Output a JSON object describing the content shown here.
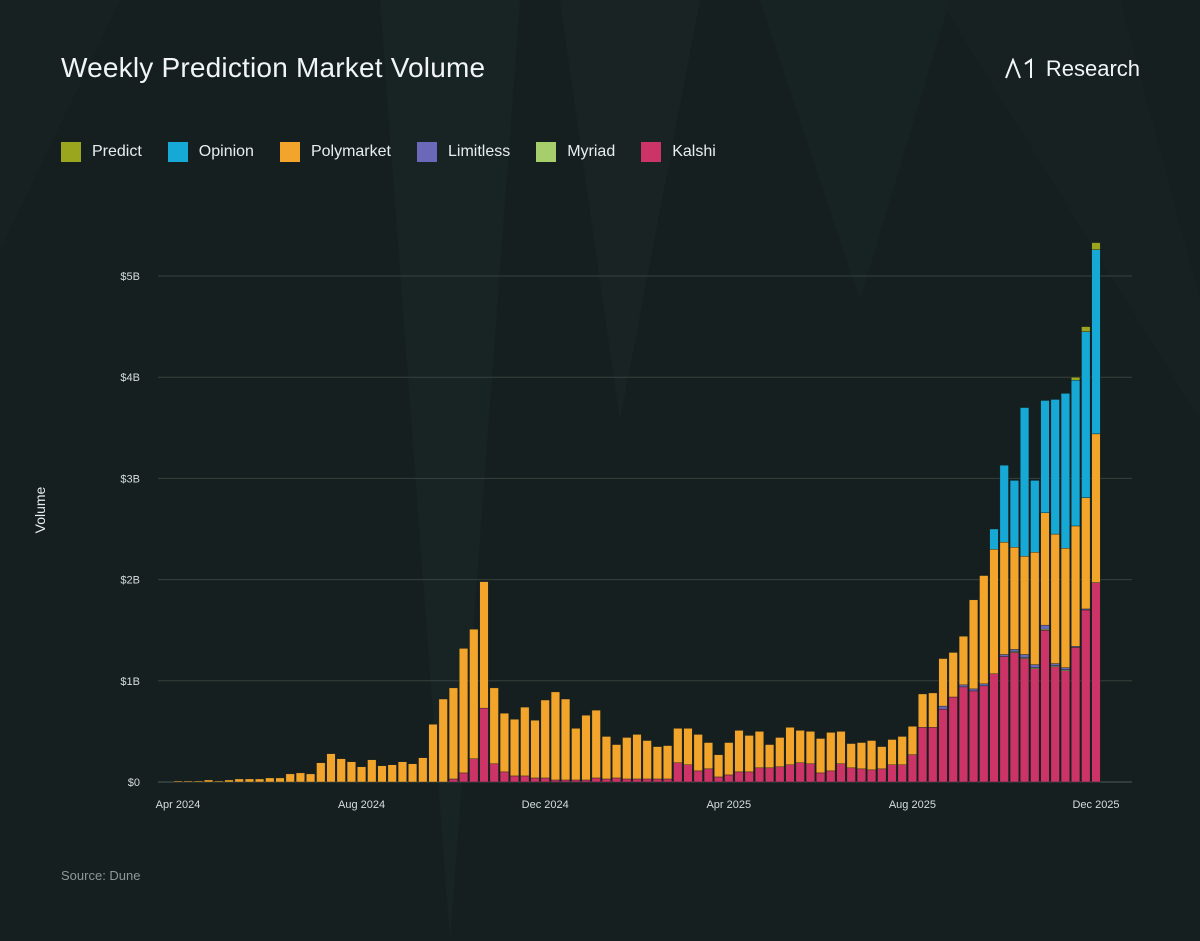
{
  "header": {
    "title": "Weekly Prediction Market Volume",
    "brand": "Research"
  },
  "legend": [
    {
      "label": "Predict",
      "color": "#9aa61e"
    },
    {
      "label": "Opinion",
      "color": "#17a9d6"
    },
    {
      "label": "Polymarket",
      "color": "#f3a52b"
    },
    {
      "label": "Limitless",
      "color": "#6b68b9"
    },
    {
      "label": "Myriad",
      "color": "#a6cf6b"
    },
    {
      "label": "Kalshi",
      "color": "#cc3366"
    }
  ],
  "footer": {
    "source": "Source: Dune"
  },
  "chart_data": {
    "type": "bar",
    "stacked": true,
    "title": "Weekly Prediction Market Volume",
    "xlabel": "",
    "ylabel": "Volume",
    "ylim": [
      0,
      5.4
    ],
    "y_ticks": [
      {
        "value": 0,
        "label": "$0"
      },
      {
        "value": 1,
        "label": "$1B"
      },
      {
        "value": 2,
        "label": "$2B"
      },
      {
        "value": 3,
        "label": "$3B"
      },
      {
        "value": 4,
        "label": "$4B"
      },
      {
        "value": 5,
        "label": "$5B"
      }
    ],
    "x_ticks": [
      {
        "week": 0,
        "label": "Apr 2024"
      },
      {
        "week": 18,
        "label": "Aug 2024"
      },
      {
        "week": 36,
        "label": "Dec 2024"
      },
      {
        "week": 54,
        "label": "Apr 2025"
      },
      {
        "week": 72,
        "label": "Aug 2025"
      },
      {
        "week": 90,
        "label": "Dec 2025"
      }
    ],
    "units": "billions USD",
    "weeks": 91,
    "series": [
      {
        "name": "Kalshi",
        "color": "#cc3366",
        "values": [
          0.0,
          0.0,
          0.0,
          0.0,
          0.0,
          0.0,
          0.0,
          0.0,
          0.0,
          0.0,
          0.0,
          0.0,
          0.0,
          0.0,
          0.0,
          0.0,
          0.0,
          0.0,
          0.0,
          0.0,
          0.0,
          0.0,
          0.0,
          0.0,
          0.0,
          0.0,
          0.0,
          0.03,
          0.09,
          0.23,
          0.73,
          0.18,
          0.1,
          0.06,
          0.06,
          0.04,
          0.04,
          0.02,
          0.02,
          0.02,
          0.02,
          0.04,
          0.03,
          0.04,
          0.03,
          0.03,
          0.03,
          0.03,
          0.03,
          0.19,
          0.17,
          0.11,
          0.13,
          0.05,
          0.07,
          0.1,
          0.1,
          0.14,
          0.14,
          0.15,
          0.17,
          0.19,
          0.18,
          0.09,
          0.11,
          0.18,
          0.14,
          0.13,
          0.12,
          0.13,
          0.17,
          0.17,
          0.27,
          0.54,
          0.54,
          0.72,
          0.84,
          0.94,
          0.9,
          0.95,
          1.07,
          1.24,
          1.28,
          1.22,
          1.12,
          1.5,
          1.14,
          1.1,
          1.33,
          1.7,
          1.97
        ]
      },
      {
        "name": "Myriad",
        "color": "#a6cf6b",
        "values": [
          0,
          0,
          0,
          0,
          0,
          0,
          0,
          0,
          0,
          0,
          0,
          0,
          0,
          0,
          0,
          0,
          0,
          0,
          0,
          0,
          0,
          0,
          0,
          0,
          0,
          0,
          0,
          0,
          0,
          0,
          0,
          0,
          0,
          0,
          0,
          0,
          0,
          0,
          0,
          0,
          0,
          0,
          0,
          0,
          0,
          0,
          0,
          0,
          0,
          0,
          0,
          0,
          0,
          0,
          0,
          0,
          0,
          0,
          0,
          0,
          0,
          0,
          0,
          0,
          0,
          0,
          0,
          0,
          0,
          0,
          0,
          0,
          0,
          0,
          0,
          0,
          0,
          0,
          0,
          0,
          0,
          0,
          0.01,
          0.01,
          0.01,
          0.01,
          0.01,
          0.01,
          0,
          0,
          0
        ]
      },
      {
        "name": "Limitless",
        "color": "#6b68b9",
        "values": [
          0,
          0,
          0,
          0,
          0,
          0,
          0,
          0,
          0,
          0,
          0,
          0,
          0,
          0,
          0,
          0,
          0,
          0,
          0,
          0,
          0,
          0,
          0,
          0,
          0,
          0,
          0,
          0,
          0,
          0,
          0,
          0,
          0,
          0,
          0,
          0,
          0,
          0,
          0,
          0,
          0,
          0,
          0,
          0,
          0,
          0,
          0,
          0,
          0,
          0,
          0,
          0,
          0,
          0,
          0,
          0,
          0,
          0,
          0,
          0,
          0,
          0,
          0,
          0,
          0,
          0,
          0,
          0,
          0,
          0,
          0,
          0,
          0,
          0,
          0,
          0.03,
          0,
          0.02,
          0.02,
          0.02,
          0,
          0.02,
          0.02,
          0.03,
          0.03,
          0.04,
          0.02,
          0.02,
          0.01,
          0.01,
          0
        ]
      },
      {
        "name": "Polymarket",
        "color": "#f3a52b",
        "values": [
          0.01,
          0.01,
          0.01,
          0.02,
          0.01,
          0.02,
          0.03,
          0.03,
          0.03,
          0.04,
          0.04,
          0.08,
          0.09,
          0.08,
          0.19,
          0.28,
          0.23,
          0.2,
          0.15,
          0.22,
          0.16,
          0.17,
          0.2,
          0.18,
          0.24,
          0.57,
          0.82,
          0.9,
          1.23,
          1.28,
          1.25,
          0.75,
          0.58,
          0.56,
          0.68,
          0.57,
          0.77,
          0.87,
          0.8,
          0.51,
          0.64,
          0.67,
          0.42,
          0.33,
          0.41,
          0.44,
          0.38,
          0.32,
          0.33,
          0.34,
          0.36,
          0.36,
          0.26,
          0.22,
          0.32,
          0.41,
          0.36,
          0.36,
          0.23,
          0.29,
          0.37,
          0.32,
          0.32,
          0.34,
          0.38,
          0.32,
          0.24,
          0.26,
          0.29,
          0.22,
          0.25,
          0.28,
          0.28,
          0.33,
          0.34,
          0.47,
          0.44,
          0.48,
          0.88,
          1.07,
          1.23,
          1.11,
          1.01,
          0.97,
          1.11,
          1.11,
          1.28,
          1.18,
          1.19,
          1.1,
          1.47
        ]
      },
      {
        "name": "Opinion",
        "color": "#17a9d6",
        "values": [
          0,
          0,
          0,
          0,
          0,
          0,
          0,
          0,
          0,
          0,
          0,
          0,
          0,
          0,
          0,
          0,
          0,
          0,
          0,
          0,
          0,
          0,
          0,
          0,
          0,
          0,
          0,
          0,
          0,
          0,
          0,
          0,
          0,
          0,
          0,
          0,
          0,
          0,
          0,
          0,
          0,
          0,
          0,
          0,
          0,
          0,
          0,
          0,
          0,
          0,
          0,
          0,
          0,
          0,
          0,
          0,
          0,
          0,
          0,
          0,
          0,
          0,
          0,
          0,
          0,
          0,
          0,
          0,
          0,
          0,
          0,
          0,
          0,
          0,
          0,
          0,
          0,
          0,
          0,
          0,
          0.2,
          0.76,
          0.66,
          1.47,
          0.71,
          1.11,
          1.33,
          1.53,
          1.44,
          1.64,
          1.82
        ]
      },
      {
        "name": "Predict",
        "color": "#9aa61e",
        "values": [
          0,
          0,
          0,
          0,
          0,
          0,
          0,
          0,
          0,
          0,
          0,
          0,
          0,
          0,
          0,
          0,
          0,
          0,
          0,
          0,
          0,
          0,
          0,
          0,
          0,
          0,
          0,
          0,
          0,
          0,
          0,
          0,
          0,
          0,
          0,
          0,
          0,
          0,
          0,
          0,
          0,
          0,
          0,
          0,
          0,
          0,
          0,
          0,
          0,
          0,
          0,
          0,
          0,
          0,
          0,
          0,
          0,
          0,
          0,
          0,
          0,
          0,
          0,
          0,
          0,
          0,
          0,
          0,
          0,
          0,
          0,
          0,
          0,
          0,
          0,
          0,
          0,
          0,
          0,
          0,
          0,
          0,
          0,
          0,
          0,
          0,
          0,
          0,
          0.03,
          0.05,
          0.07
        ]
      }
    ]
  }
}
